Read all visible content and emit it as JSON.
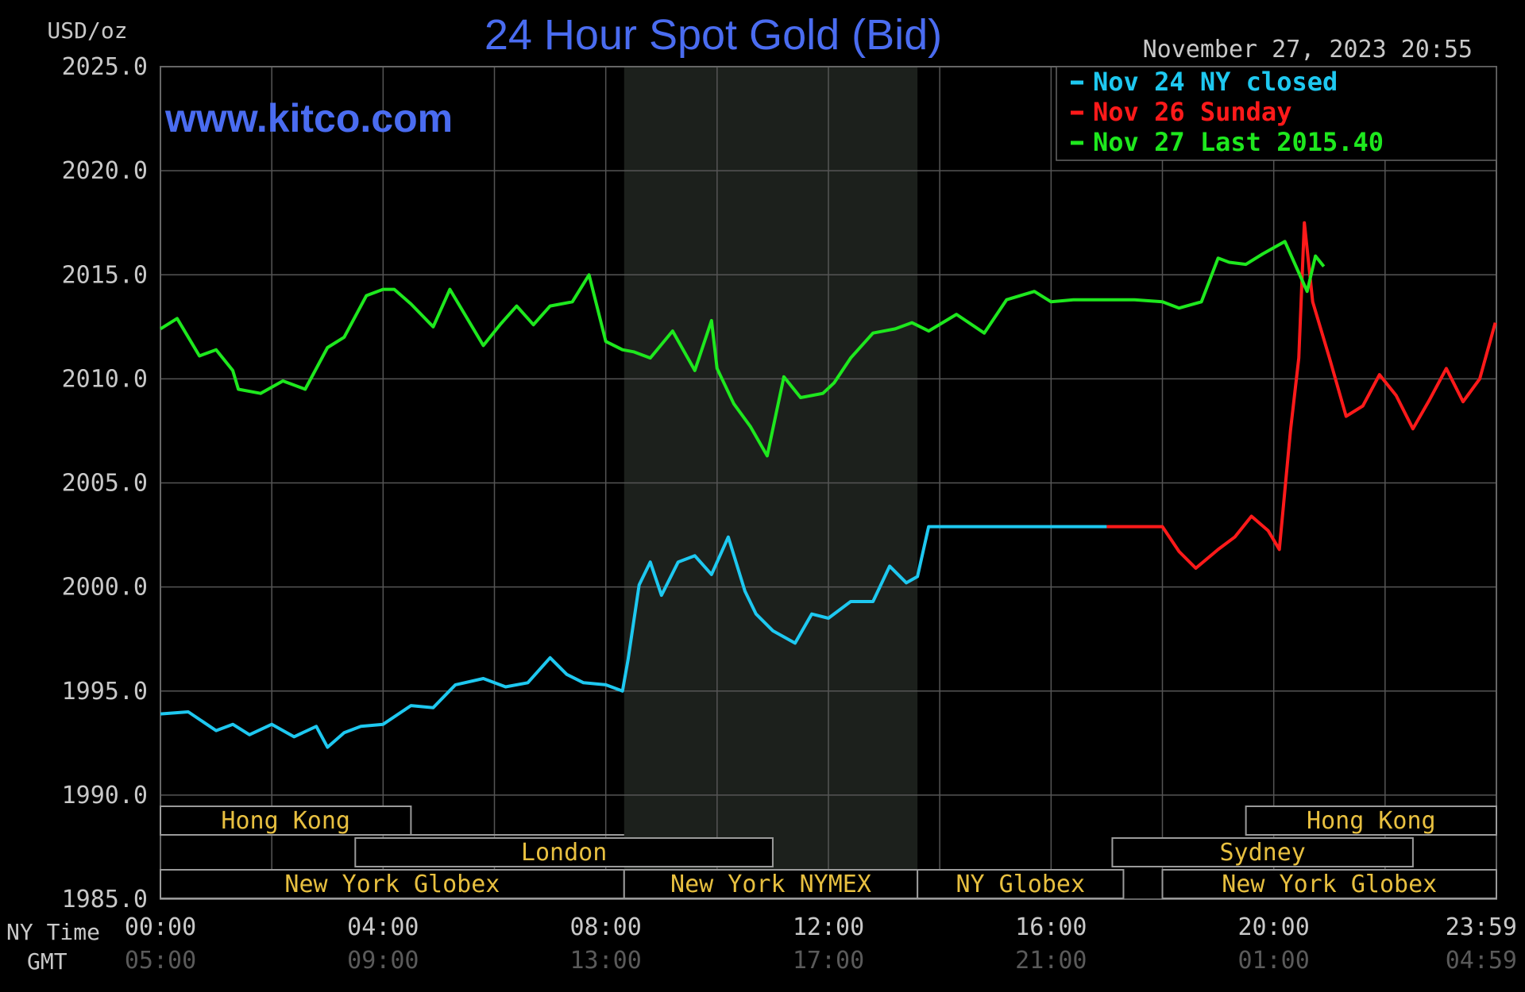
{
  "chart_data": {
    "type": "line",
    "title": "24 Hour Spot Gold (Bid)",
    "ylabel": "USD/oz",
    "watermark": "www.kitco.com",
    "timestamp": "November 27, 2023 20:55",
    "ylim": [
      1985.0,
      2025.0
    ],
    "y_ticks": [
      "2025.0",
      "2020.0",
      "2015.0",
      "2010.0",
      "2005.0",
      "2000.0",
      "1995.0",
      "1990.0",
      "1985.0"
    ],
    "x_axis_label_ny": "NY Time",
    "x_axis_label_gmt": "GMT",
    "x_ticks_ny": [
      "00:00",
      "04:00",
      "08:00",
      "12:00",
      "16:00",
      "20:00",
      "23:59"
    ],
    "x_ticks_gmt": [
      "05:00",
      "09:00",
      "13:00",
      "17:00",
      "21:00",
      "01:00",
      "04:59"
    ],
    "grid": true,
    "legend_position": "top-right",
    "legend": [
      {
        "label": "Nov 24 NY closed",
        "color": "#1ec8f0"
      },
      {
        "label": "Nov 26 Sunday",
        "color": "#ff1a1a"
      },
      {
        "label": "Nov 27 Last 2015.40",
        "color": "#1ee81e"
      }
    ],
    "sessions": {
      "top": [
        {
          "label": "Hong Kong"
        },
        {
          "label": "Hong Kong"
        }
      ],
      "middle": [
        {
          "label": "London"
        },
        {
          "label": "Sydney"
        }
      ],
      "bottom": [
        {
          "label": "New York Globex"
        },
        {
          "label": "New York NYMEX"
        },
        {
          "label": "NY Globex"
        },
        {
          "label": "New York Globex"
        }
      ]
    },
    "series": [
      {
        "name": "Nov 24 NY closed",
        "color": "#1ec8f0",
        "x": [
          0.0,
          0.5,
          1.0,
          1.3,
          1.6,
          2.0,
          2.4,
          2.8,
          3.0,
          3.3,
          3.6,
          4.0,
          4.5,
          4.9,
          5.3,
          5.8,
          6.2,
          6.6,
          7.0,
          7.3,
          7.6,
          8.0,
          8.3,
          8.4,
          8.6,
          8.8,
          9.0,
          9.3,
          9.6,
          9.9,
          10.2,
          10.5,
          10.7,
          11.0,
          11.4,
          11.7,
          12.0,
          12.4,
          12.8,
          13.1,
          13.4,
          13.6,
          13.8,
          15.0,
          17.0
        ],
        "values": [
          1993.9,
          1994.0,
          1993.1,
          1993.4,
          1992.9,
          1993.4,
          1992.8,
          1993.3,
          1992.3,
          1993.0,
          1993.3,
          1993.4,
          1994.3,
          1994.2,
          1995.3,
          1995.6,
          1995.2,
          1995.4,
          1996.6,
          1995.8,
          1995.4,
          1995.3,
          1995.0,
          1996.5,
          2000.1,
          2001.2,
          1999.6,
          2001.2,
          2001.5,
          2000.6,
          2002.4,
          1999.8,
          1998.7,
          1997.9,
          1997.3,
          1998.7,
          1998.5,
          1999.3,
          1999.3,
          2001.0,
          2000.2,
          2000.5,
          2002.9,
          2002.9,
          2002.9
        ]
      },
      {
        "name": "Nov 26 Sunday",
        "color": "#ff1a1a",
        "x": [
          17.0,
          18.0,
          18.3,
          18.6,
          19.0,
          19.3,
          19.6,
          19.9,
          20.1,
          20.3,
          20.45,
          20.55,
          20.7,
          21.0,
          21.3,
          21.6,
          21.9,
          22.2,
          22.5,
          22.8,
          23.1,
          23.4,
          23.7,
          23.98
        ],
        "values": [
          2002.9,
          2002.9,
          2001.7,
          2000.9,
          2001.8,
          2002.4,
          2003.4,
          2002.7,
          2001.8,
          2007.5,
          2011.0,
          2017.5,
          2013.7,
          2011.0,
          2008.2,
          2008.7,
          2010.2,
          2009.2,
          2007.6,
          2009.0,
          2010.5,
          2008.9,
          2010.0,
          2012.7
        ]
      },
      {
        "name": "Nov 27 Last 2015.40",
        "color": "#1ee81e",
        "x": [
          0.0,
          0.3,
          0.7,
          1.0,
          1.3,
          1.4,
          1.8,
          2.2,
          2.6,
          3.0,
          3.3,
          3.7,
          4.0,
          4.2,
          4.5,
          4.9,
          5.2,
          5.6,
          5.8,
          6.1,
          6.4,
          6.7,
          7.0,
          7.4,
          7.7,
          8.0,
          8.3,
          8.5,
          8.8,
          9.2,
          9.6,
          9.9,
          10.0,
          10.3,
          10.6,
          10.9,
          11.2,
          11.5,
          11.7,
          11.9,
          12.1,
          12.4,
          12.8,
          13.2,
          13.5,
          13.8,
          14.3,
          14.8,
          15.2,
          15.7,
          16.0,
          16.4,
          16.8,
          17.5,
          18.0,
          18.3,
          18.7,
          19.0,
          19.2,
          19.5,
          19.8,
          20.2,
          20.5,
          20.6,
          20.75,
          20.9
        ],
        "values": [
          2012.4,
          2012.9,
          2011.1,
          2011.4,
          2010.4,
          2009.5,
          2009.3,
          2009.9,
          2009.5,
          2011.5,
          2012.0,
          2014.0,
          2014.3,
          2014.3,
          2013.6,
          2012.5,
          2014.3,
          2012.5,
          2011.6,
          2012.6,
          2013.5,
          2012.6,
          2013.5,
          2013.7,
          2015.0,
          2011.8,
          2011.4,
          2011.3,
          2011.0,
          2012.3,
          2010.4,
          2012.8,
          2010.5,
          2008.8,
          2007.7,
          2006.3,
          2010.1,
          2009.1,
          2009.2,
          2009.3,
          2009.8,
          2011.0,
          2012.2,
          2012.4,
          2012.7,
          2012.3,
          2013.1,
          2012.2,
          2013.8,
          2014.2,
          2013.7,
          2013.8,
          2013.8,
          2013.8,
          2013.7,
          2013.4,
          2013.7,
          2015.8,
          2015.6,
          2015.5,
          2016.0,
          2016.6,
          2014.8,
          2014.2,
          2015.9,
          2015.4
        ]
      }
    ]
  }
}
